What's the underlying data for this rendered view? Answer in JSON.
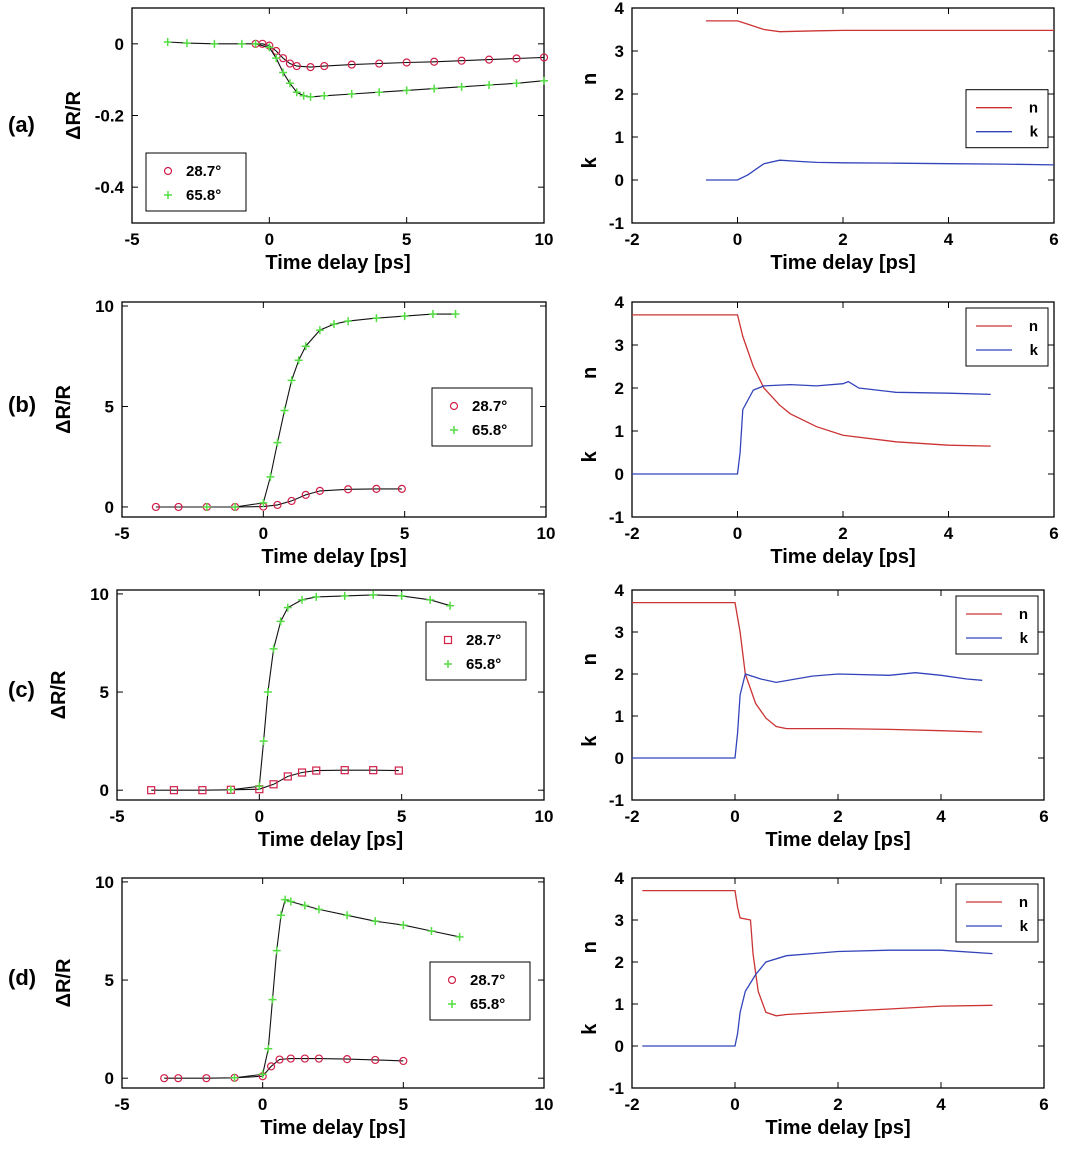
{
  "chart_data": [
    {
      "panel": "(a)",
      "side": "left",
      "type": "scatter",
      "xlabel": "Time delay [ps]",
      "ylabel": "ΔR/R",
      "xlim": [
        -5,
        10
      ],
      "ylim": [
        -0.5,
        0.1
      ],
      "xticks": [
        -5,
        0,
        5,
        10
      ],
      "yticks": [
        0,
        -0.2,
        -0.4
      ],
      "ytick_labels": [
        "0",
        "-0.2",
        "-0.4"
      ],
      "legend_position": "lower-left",
      "series": [
        {
          "name": "28.7°",
          "marker": "circle",
          "color": "#d0204a",
          "x": [
            -0.5,
            -0.25,
            0,
            0.25,
            0.5,
            0.75,
            1,
            1.5,
            2,
            3,
            4,
            5,
            6,
            7,
            8,
            9,
            10
          ],
          "y": [
            0,
            0,
            -0.005,
            -0.02,
            -0.04,
            -0.055,
            -0.062,
            -0.065,
            -0.062,
            -0.058,
            -0.055,
            -0.052,
            -0.05,
            -0.047,
            -0.044,
            -0.041,
            -0.038
          ]
        },
        {
          "name": "65.8°",
          "marker": "plus",
          "color": "#55dd44",
          "x": [
            -3.7,
            -3,
            -2,
            -1,
            -0.5,
            0,
            0.25,
            0.5,
            0.75,
            1,
            1.25,
            1.5,
            2,
            3,
            4,
            5,
            6,
            7,
            8,
            9,
            10
          ],
          "y": [
            0.005,
            0.002,
            0,
            0,
            0,
            -0.01,
            -0.04,
            -0.08,
            -0.11,
            -0.135,
            -0.145,
            -0.148,
            -0.145,
            -0.14,
            -0.135,
            -0.13,
            -0.125,
            -0.12,
            -0.115,
            -0.11,
            -0.103
          ]
        }
      ]
    },
    {
      "panel": "(a)",
      "side": "right",
      "type": "line",
      "xlabel": "Time delay [ps]",
      "ylabel_top": "n",
      "ylabel_bottom": "k",
      "xlim": [
        -2,
        6
      ],
      "ylim": [
        -1,
        4
      ],
      "xticks": [
        -2,
        0,
        2,
        4,
        6
      ],
      "yticks": [
        -1,
        0,
        1,
        2,
        3,
        4
      ],
      "legend_position": "right",
      "series": [
        {
          "name": "n",
          "color": "#cc3333",
          "x": [
            -0.6,
            0,
            0.2,
            0.5,
            0.8,
            1.5,
            2,
            3,
            4,
            5,
            6
          ],
          "y": [
            3.7,
            3.7,
            3.62,
            3.5,
            3.45,
            3.47,
            3.48,
            3.48,
            3.48,
            3.48,
            3.48
          ]
        },
        {
          "name": "k",
          "color": "#3344bb",
          "x": [
            -0.6,
            0,
            0.2,
            0.5,
            0.8,
            1.2,
            1.5,
            2,
            3,
            4,
            5,
            6
          ],
          "y": [
            0,
            0,
            0.12,
            0.38,
            0.46,
            0.43,
            0.41,
            0.4,
            0.39,
            0.38,
            0.37,
            0.35
          ]
        }
      ]
    },
    {
      "panel": "(b)",
      "side": "left",
      "type": "scatter",
      "xlabel": "Time delay [ps]",
      "ylabel": "ΔR/R",
      "xlim": [
        -5,
        10
      ],
      "ylim": [
        -0.5,
        10.2
      ],
      "xticks": [
        -5,
        0,
        5,
        10
      ],
      "yticks": [
        0,
        5,
        10
      ],
      "ytick_labels": [
        "0",
        "5",
        "10"
      ],
      "legend_position": "right",
      "series": [
        {
          "name": "28.7°",
          "marker": "circle",
          "color": "#d0204a",
          "x": [
            -3.8,
            -3,
            -2,
            -1,
            0,
            0.5,
            1,
            1.5,
            2,
            3,
            4,
            4.9
          ],
          "y": [
            0,
            0,
            0,
            0,
            0.02,
            0.1,
            0.3,
            0.6,
            0.8,
            0.88,
            0.9,
            0.9
          ]
        },
        {
          "name": "65.8°",
          "marker": "plus",
          "color": "#55dd44",
          "x": [
            -2,
            -1,
            0,
            0.25,
            0.5,
            0.75,
            1,
            1.25,
            1.5,
            2,
            2.5,
            3,
            4,
            5,
            6,
            6.8
          ],
          "y": [
            0,
            0,
            0.2,
            1.5,
            3.2,
            4.8,
            6.3,
            7.3,
            8.0,
            8.8,
            9.1,
            9.25,
            9.4,
            9.5,
            9.6,
            9.6
          ]
        }
      ]
    },
    {
      "panel": "(b)",
      "side": "right",
      "type": "line",
      "xlabel": "Time delay [ps]",
      "ylabel_top": "n",
      "ylabel_bottom": "k",
      "xlim": [
        -2,
        6
      ],
      "ylim": [
        -1,
        4
      ],
      "xticks": [
        -2,
        0,
        2,
        4,
        6
      ],
      "yticks": [
        -1,
        0,
        1,
        2,
        3,
        4
      ],
      "legend_position": "top-right",
      "series": [
        {
          "name": "n",
          "color": "#cc3333",
          "x": [
            -2,
            0,
            0.1,
            0.3,
            0.5,
            0.8,
            1,
            1.5,
            2,
            3,
            4,
            4.8
          ],
          "y": [
            3.7,
            3.7,
            3.2,
            2.5,
            2.0,
            1.6,
            1.4,
            1.1,
            0.9,
            0.75,
            0.67,
            0.65
          ]
        },
        {
          "name": "k",
          "color": "#3344bb",
          "x": [
            -2,
            0,
            0.05,
            0.1,
            0.3,
            0.5,
            1,
            1.5,
            2,
            2.1,
            2.3,
            3,
            4,
            4.8
          ],
          "y": [
            0,
            0,
            0.5,
            1.5,
            1.95,
            2.05,
            2.08,
            2.05,
            2.1,
            2.15,
            2.0,
            1.9,
            1.88,
            1.85
          ]
        }
      ]
    },
    {
      "panel": "(c)",
      "side": "left",
      "type": "scatter",
      "xlabel": "Time delay [ps]",
      "ylabel": "ΔR/R",
      "xlim": [
        -5,
        10
      ],
      "ylim": [
        -0.5,
        10.2
      ],
      "xticks": [
        -5,
        0,
        5,
        10
      ],
      "yticks": [
        0,
        5,
        10
      ],
      "ytick_labels": [
        "0",
        "5",
        "10"
      ],
      "legend_position": "top-right",
      "series": [
        {
          "name": "28.7°",
          "marker": "square",
          "color": "#d0204a",
          "x": [
            -3.8,
            -3,
            -2,
            -1,
            0,
            0.5,
            1,
            1.5,
            2,
            3,
            4,
            4.9
          ],
          "y": [
            0,
            0,
            0,
            0.02,
            0.05,
            0.3,
            0.7,
            0.9,
            1.0,
            1.02,
            1.02,
            1.0
          ]
        },
        {
          "name": "65.8°",
          "marker": "plus",
          "color": "#55dd44",
          "x": [
            -1,
            0,
            0.15,
            0.3,
            0.5,
            0.75,
            1,
            1.5,
            2,
            3,
            4,
            5,
            6,
            6.7
          ],
          "y": [
            0.02,
            0.2,
            2.5,
            5.0,
            7.2,
            8.6,
            9.3,
            9.7,
            9.85,
            9.9,
            9.95,
            9.9,
            9.7,
            9.4
          ]
        }
      ]
    },
    {
      "panel": "(c)",
      "side": "right",
      "type": "line",
      "xlabel": "Time delay [ps]",
      "ylabel_top": "n",
      "ylabel_bottom": "k",
      "xlim": [
        -2,
        6
      ],
      "ylim": [
        -1,
        4
      ],
      "xticks": [
        -2,
        0,
        2,
        4,
        6
      ],
      "yticks": [
        -1,
        0,
        1,
        2,
        3,
        4
      ],
      "legend_position": "top-right",
      "series": [
        {
          "name": "n",
          "color": "#cc3333",
          "x": [
            -2,
            0,
            0.1,
            0.2,
            0.4,
            0.6,
            0.8,
            1,
            2,
            3,
            4,
            4.8
          ],
          "y": [
            3.7,
            3.7,
            3.0,
            2.0,
            1.3,
            0.95,
            0.75,
            0.7,
            0.7,
            0.68,
            0.65,
            0.62
          ]
        },
        {
          "name": "k",
          "color": "#3344bb",
          "x": [
            -2,
            0,
            0.05,
            0.1,
            0.2,
            0.5,
            0.8,
            1.5,
            2,
            3,
            3.5,
            4,
            4.5,
            4.8
          ],
          "y": [
            0,
            0,
            0.6,
            1.5,
            2.0,
            1.88,
            1.8,
            1.95,
            2.0,
            1.97,
            2.03,
            1.97,
            1.88,
            1.85
          ]
        }
      ]
    },
    {
      "panel": "(d)",
      "side": "left",
      "type": "scatter",
      "xlabel": "Time delay [ps]",
      "ylabel": "ΔR/R",
      "xlim": [
        -5,
        10
      ],
      "ylim": [
        -0.5,
        10.2
      ],
      "xticks": [
        -5,
        0,
        5,
        10
      ],
      "yticks": [
        0,
        5,
        10
      ],
      "ytick_labels": [
        "0",
        "5",
        "10"
      ],
      "legend_position": "right",
      "series": [
        {
          "name": "28.7°",
          "marker": "circle",
          "color": "#d0204a",
          "x": [
            -3.5,
            -3,
            -2,
            -1,
            0,
            0.3,
            0.6,
            1,
            1.5,
            2,
            3,
            4,
            5
          ],
          "y": [
            0,
            0,
            0,
            0.02,
            0.1,
            0.6,
            0.95,
            1.0,
            1.0,
            1.0,
            0.97,
            0.93,
            0.88
          ]
        },
        {
          "name": "65.8°",
          "marker": "plus",
          "color": "#55dd44",
          "x": [
            -1,
            0,
            0.2,
            0.35,
            0.5,
            0.65,
            0.8,
            1,
            1.5,
            2,
            3,
            4,
            5,
            6,
            7
          ],
          "y": [
            0.02,
            0.2,
            1.5,
            4.0,
            6.5,
            8.3,
            9.1,
            9.0,
            8.8,
            8.6,
            8.3,
            8.0,
            7.8,
            7.5,
            7.2
          ]
        }
      ]
    },
    {
      "panel": "(d)",
      "side": "right",
      "type": "line",
      "xlabel": "Time delay [ps]",
      "ylabel_top": "n",
      "ylabel_bottom": "k",
      "xlim": [
        -2,
        6
      ],
      "ylim": [
        -1,
        4
      ],
      "xticks": [
        -2,
        0,
        2,
        4,
        6
      ],
      "yticks": [
        -1,
        0,
        1,
        2,
        3,
        4
      ],
      "legend_position": "top-right",
      "series": [
        {
          "name": "n",
          "color": "#cc3333",
          "x": [
            -1.8,
            0,
            0.05,
            0.1,
            0.3,
            0.35,
            0.45,
            0.6,
            0.8,
            1,
            2,
            3,
            4,
            5
          ],
          "y": [
            3.7,
            3.7,
            3.3,
            3.05,
            3.0,
            2.2,
            1.3,
            0.8,
            0.72,
            0.75,
            0.82,
            0.88,
            0.95,
            0.97
          ]
        },
        {
          "name": "k",
          "color": "#3344bb",
          "x": [
            -1.8,
            0,
            0.05,
            0.1,
            0.2,
            0.4,
            0.6,
            1,
            1.5,
            2,
            3,
            4,
            5
          ],
          "y": [
            0,
            0,
            0.3,
            0.8,
            1.3,
            1.7,
            2.0,
            2.15,
            2.2,
            2.25,
            2.28,
            2.28,
            2.2
          ]
        }
      ]
    }
  ],
  "row_labels": [
    "(a)",
    "(b)",
    "(c)",
    "(d)"
  ]
}
